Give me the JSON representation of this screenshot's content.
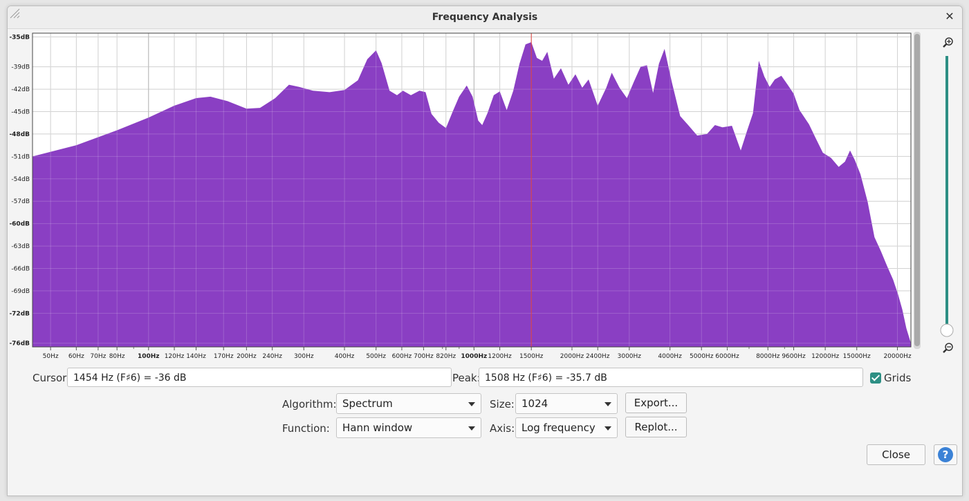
{
  "window": {
    "title": "Frequency Analysis",
    "close_glyph": "✕"
  },
  "chart_data": {
    "type": "area",
    "xscale": "log",
    "xlim": [
      44,
      22000
    ],
    "ylim": [
      -76.5,
      -34.5
    ],
    "grid": true,
    "fill_color": "#8a3fc3",
    "cursor_line_color": "#e0403a",
    "cursor_freq": 1500,
    "y_ticks": [
      {
        "v": -35,
        "label": "-35dB",
        "bold": true
      },
      {
        "v": -39,
        "label": "-39dB",
        "bold": false
      },
      {
        "v": -42,
        "label": "-42dB",
        "bold": false
      },
      {
        "v": -45,
        "label": "-45dB",
        "bold": false
      },
      {
        "v": -48,
        "label": "-48dB",
        "bold": true
      },
      {
        "v": -51,
        "label": "-51dB",
        "bold": false
      },
      {
        "v": -54,
        "label": "-54dB",
        "bold": false
      },
      {
        "v": -57,
        "label": "-57dB",
        "bold": false
      },
      {
        "v": -60,
        "label": "-60dB",
        "bold": true
      },
      {
        "v": -63,
        "label": "-63dB",
        "bold": false
      },
      {
        "v": -66,
        "label": "-66dB",
        "bold": false
      },
      {
        "v": -69,
        "label": "-69dB",
        "bold": false
      },
      {
        "v": -72,
        "label": "-72dB",
        "bold": true
      },
      {
        "v": -76,
        "label": "-76dB",
        "bold": true
      }
    ],
    "x_ticks": [
      {
        "f": 50,
        "label": "50Hz",
        "bold": false
      },
      {
        "f": 60,
        "label": "60Hz",
        "bold": false
      },
      {
        "f": 70,
        "label": "70Hz",
        "bold": false
      },
      {
        "f": 80,
        "label": "80Hz",
        "bold": false
      },
      {
        "f": 100,
        "label": "100Hz",
        "bold": true
      },
      {
        "f": 120,
        "label": "120Hz",
        "bold": false
      },
      {
        "f": 140,
        "label": "140Hz",
        "bold": false
      },
      {
        "f": 170,
        "label": "170Hz",
        "bold": false
      },
      {
        "f": 200,
        "label": "200Hz",
        "bold": false
      },
      {
        "f": 240,
        "label": "240Hz",
        "bold": false
      },
      {
        "f": 300,
        "label": "300Hz",
        "bold": false
      },
      {
        "f": 400,
        "label": "400Hz",
        "bold": false
      },
      {
        "f": 500,
        "label": "500Hz",
        "bold": false
      },
      {
        "f": 600,
        "label": "600Hz",
        "bold": false
      },
      {
        "f": 700,
        "label": "700Hz",
        "bold": false
      },
      {
        "f": 820,
        "label": "820Hz",
        "bold": false
      },
      {
        "f": 1000,
        "label": "1000Hz",
        "bold": true
      },
      {
        "f": 1200,
        "label": "1200Hz",
        "bold": false
      },
      {
        "f": 1500,
        "label": "1500Hz",
        "bold": false
      },
      {
        "f": 2000,
        "label": "2000Hz",
        "bold": false
      },
      {
        "f": 2400,
        "label": "2400Hz",
        "bold": false
      },
      {
        "f": 3000,
        "label": "3000Hz",
        "bold": false
      },
      {
        "f": 4000,
        "label": "4000Hz",
        "bold": false
      },
      {
        "f": 5000,
        "label": "5000Hz",
        "bold": false
      },
      {
        "f": 6000,
        "label": "6000Hz",
        "bold": false
      },
      {
        "f": 8000,
        "label": "8000Hz",
        "bold": false
      },
      {
        "f": 9600,
        "label": "9600Hz",
        "bold": false
      },
      {
        "f": 12000,
        "label": "12000Hz",
        "bold": false
      },
      {
        "f": 15000,
        "label": "15000Hz",
        "bold": false
      },
      {
        "f": 20000,
        "label": "20000Hz",
        "bold": false
      }
    ],
    "spectrum": [
      [
        44,
        -51
      ],
      [
        60,
        -49.5
      ],
      [
        80,
        -47.5
      ],
      [
        100,
        -45.8
      ],
      [
        120,
        -44.2
      ],
      [
        140,
        -43.2
      ],
      [
        155,
        -43
      ],
      [
        175,
        -43.6
      ],
      [
        200,
        -44.6
      ],
      [
        220,
        -44.5
      ],
      [
        245,
        -43.2
      ],
      [
        270,
        -41.4
      ],
      [
        290,
        -41.7
      ],
      [
        320,
        -42.2
      ],
      [
        360,
        -42.4
      ],
      [
        400,
        -42.1
      ],
      [
        440,
        -40.8
      ],
      [
        470,
        -38
      ],
      [
        500,
        -36.8
      ],
      [
        520,
        -38.5
      ],
      [
        550,
        -42.2
      ],
      [
        580,
        -42.8
      ],
      [
        605,
        -42.2
      ],
      [
        640,
        -42.8
      ],
      [
        680,
        -42.2
      ],
      [
        710,
        -42.4
      ],
      [
        740,
        -45.3
      ],
      [
        780,
        -46.5
      ],
      [
        820,
        -47.2
      ],
      [
        860,
        -45
      ],
      [
        900,
        -43
      ],
      [
        950,
        -41.5
      ],
      [
        990,
        -43
      ],
      [
        1030,
        -46.2
      ],
      [
        1060,
        -46.8
      ],
      [
        1100,
        -45.2
      ],
      [
        1150,
        -42.8
      ],
      [
        1200,
        -42.3
      ],
      [
        1260,
        -44.8
      ],
      [
        1320,
        -42.2
      ],
      [
        1380,
        -38.6
      ],
      [
        1440,
        -36
      ],
      [
        1500,
        -35.7
      ],
      [
        1560,
        -37.8
      ],
      [
        1620,
        -38.2
      ],
      [
        1680,
        -37
      ],
      [
        1760,
        -40.6
      ],
      [
        1850,
        -39.2
      ],
      [
        1950,
        -41.4
      ],
      [
        2050,
        -40
      ],
      [
        2150,
        -41.8
      ],
      [
        2250,
        -40.7
      ],
      [
        2400,
        -44.2
      ],
      [
        2550,
        -41.8
      ],
      [
        2650,
        -39.8
      ],
      [
        2800,
        -41.8
      ],
      [
        2950,
        -43.2
      ],
      [
        3100,
        -41
      ],
      [
        3250,
        -39
      ],
      [
        3400,
        -38.8
      ],
      [
        3550,
        -42.5
      ],
      [
        3700,
        -38.6
      ],
      [
        3850,
        -36.6
      ],
      [
        4050,
        -41
      ],
      [
        4300,
        -45.6
      ],
      [
        4550,
        -46.8
      ],
      [
        4850,
        -48.2
      ],
      [
        5200,
        -48
      ],
      [
        5500,
        -46.8
      ],
      [
        5800,
        -47.1
      ],
      [
        6200,
        -46.9
      ],
      [
        6600,
        -50.2
      ],
      [
        6900,
        -47.6
      ],
      [
        7200,
        -45.2
      ],
      [
        7500,
        -38.2
      ],
      [
        7800,
        -40.3
      ],
      [
        8100,
        -41.7
      ],
      [
        8400,
        -40.7
      ],
      [
        8800,
        -40.2
      ],
      [
        9200,
        -41.4
      ],
      [
        9600,
        -42.6
      ],
      [
        10000,
        -44.8
      ],
      [
        10700,
        -46.7
      ],
      [
        11200,
        -48.5
      ],
      [
        11800,
        -50.5
      ],
      [
        12500,
        -51.2
      ],
      [
        13200,
        -52.4
      ],
      [
        13800,
        -51.7
      ],
      [
        14300,
        -50.2
      ],
      [
        14800,
        -51.5
      ],
      [
        15400,
        -53.4
      ],
      [
        16200,
        -57.1
      ],
      [
        17000,
        -61.8
      ],
      [
        17800,
        -63.7
      ],
      [
        18600,
        -65.7
      ],
      [
        19400,
        -67.5
      ],
      [
        20100,
        -69.5
      ],
      [
        20700,
        -71.5
      ],
      [
        21300,
        -74
      ],
      [
        22000,
        -76
      ]
    ]
  },
  "controls": {
    "cursor_label": "Cursor:",
    "cursor_value": "1454 Hz (F♯6) = -36 dB",
    "peak_label": "Peak:",
    "peak_value": "1508 Hz (F♯6) = -35.7 dB",
    "grids_label": "Grids",
    "grids_checked": true,
    "algorithm_label": "Algorithm:",
    "algorithm_value": "Spectrum",
    "size_label": "Size:",
    "size_value": "1024",
    "export_label": "Export...",
    "function_label": "Function:",
    "function_value": "Hann window",
    "axis_label": "Axis:",
    "axis_value": "Log frequency",
    "replot_label": "Replot...",
    "close_label": "Close",
    "help_glyph": "?"
  },
  "icons": {
    "zoom_in": "zoom-in-icon",
    "zoom_out": "zoom-out-icon",
    "help": "help-icon"
  },
  "accent_color": "#2d8f84"
}
